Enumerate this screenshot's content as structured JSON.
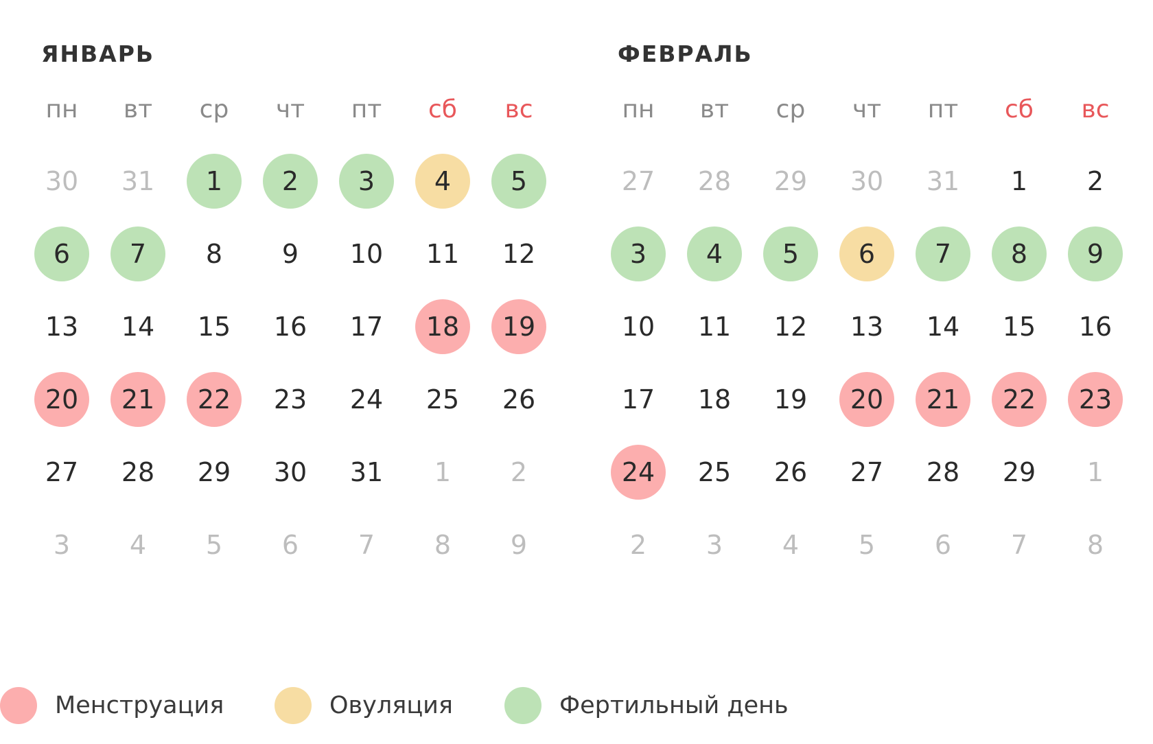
{
  "months": [
    {
      "title": "ЯНВАРЬ",
      "weekdays": [
        {
          "label": "пн",
          "weekend": false
        },
        {
          "label": "вт",
          "weekend": false
        },
        {
          "label": "ср",
          "weekend": false
        },
        {
          "label": "чт",
          "weekend": false
        },
        {
          "label": "пт",
          "weekend": false
        },
        {
          "label": "сб",
          "weekend": true
        },
        {
          "label": "вс",
          "weekend": true
        }
      ],
      "weeks": [
        [
          {
            "day": "30",
            "inMonth": false,
            "type": null
          },
          {
            "day": "31",
            "inMonth": false,
            "type": null
          },
          {
            "day": "1",
            "inMonth": true,
            "type": "fertile"
          },
          {
            "day": "2",
            "inMonth": true,
            "type": "fertile"
          },
          {
            "day": "3",
            "inMonth": true,
            "type": "fertile"
          },
          {
            "day": "4",
            "inMonth": true,
            "type": "ovulation"
          },
          {
            "day": "5",
            "inMonth": true,
            "type": "fertile"
          }
        ],
        [
          {
            "day": "6",
            "inMonth": true,
            "type": "fertile"
          },
          {
            "day": "7",
            "inMonth": true,
            "type": "fertile"
          },
          {
            "day": "8",
            "inMonth": true,
            "type": null
          },
          {
            "day": "9",
            "inMonth": true,
            "type": null
          },
          {
            "day": "10",
            "inMonth": true,
            "type": null
          },
          {
            "day": "11",
            "inMonth": true,
            "type": null
          },
          {
            "day": "12",
            "inMonth": true,
            "type": null
          }
        ],
        [
          {
            "day": "13",
            "inMonth": true,
            "type": null
          },
          {
            "day": "14",
            "inMonth": true,
            "type": null
          },
          {
            "day": "15",
            "inMonth": true,
            "type": null
          },
          {
            "day": "16",
            "inMonth": true,
            "type": null
          },
          {
            "day": "17",
            "inMonth": true,
            "type": null
          },
          {
            "day": "18",
            "inMonth": true,
            "type": "menstruation"
          },
          {
            "day": "19",
            "inMonth": true,
            "type": "menstruation"
          }
        ],
        [
          {
            "day": "20",
            "inMonth": true,
            "type": "menstruation"
          },
          {
            "day": "21",
            "inMonth": true,
            "type": "menstruation"
          },
          {
            "day": "22",
            "inMonth": true,
            "type": "menstruation"
          },
          {
            "day": "23",
            "inMonth": true,
            "type": null
          },
          {
            "day": "24",
            "inMonth": true,
            "type": null
          },
          {
            "day": "25",
            "inMonth": true,
            "type": null
          },
          {
            "day": "26",
            "inMonth": true,
            "type": null
          }
        ],
        [
          {
            "day": "27",
            "inMonth": true,
            "type": null
          },
          {
            "day": "28",
            "inMonth": true,
            "type": null
          },
          {
            "day": "29",
            "inMonth": true,
            "type": null
          },
          {
            "day": "30",
            "inMonth": true,
            "type": null
          },
          {
            "day": "31",
            "inMonth": true,
            "type": null
          },
          {
            "day": "1",
            "inMonth": false,
            "type": null
          },
          {
            "day": "2",
            "inMonth": false,
            "type": null
          }
        ],
        [
          {
            "day": "3",
            "inMonth": false,
            "type": null
          },
          {
            "day": "4",
            "inMonth": false,
            "type": null
          },
          {
            "day": "5",
            "inMonth": false,
            "type": null
          },
          {
            "day": "6",
            "inMonth": false,
            "type": null
          },
          {
            "day": "7",
            "inMonth": false,
            "type": null
          },
          {
            "day": "8",
            "inMonth": false,
            "type": null
          },
          {
            "day": "9",
            "inMonth": false,
            "type": null
          }
        ]
      ]
    },
    {
      "title": "ФЕВРАЛЬ",
      "weekdays": [
        {
          "label": "пн",
          "weekend": false
        },
        {
          "label": "вт",
          "weekend": false
        },
        {
          "label": "ср",
          "weekend": false
        },
        {
          "label": "чт",
          "weekend": false
        },
        {
          "label": "пт",
          "weekend": false
        },
        {
          "label": "сб",
          "weekend": true
        },
        {
          "label": "вс",
          "weekend": true
        }
      ],
      "weeks": [
        [
          {
            "day": "27",
            "inMonth": false,
            "type": null
          },
          {
            "day": "28",
            "inMonth": false,
            "type": null
          },
          {
            "day": "29",
            "inMonth": false,
            "type": null
          },
          {
            "day": "30",
            "inMonth": false,
            "type": null
          },
          {
            "day": "31",
            "inMonth": false,
            "type": null
          },
          {
            "day": "1",
            "inMonth": true,
            "type": null
          },
          {
            "day": "2",
            "inMonth": true,
            "type": null
          }
        ],
        [
          {
            "day": "3",
            "inMonth": true,
            "type": "fertile"
          },
          {
            "day": "4",
            "inMonth": true,
            "type": "fertile"
          },
          {
            "day": "5",
            "inMonth": true,
            "type": "fertile"
          },
          {
            "day": "6",
            "inMonth": true,
            "type": "ovulation"
          },
          {
            "day": "7",
            "inMonth": true,
            "type": "fertile"
          },
          {
            "day": "8",
            "inMonth": true,
            "type": "fertile"
          },
          {
            "day": "9",
            "inMonth": true,
            "type": "fertile"
          }
        ],
        [
          {
            "day": "10",
            "inMonth": true,
            "type": null
          },
          {
            "day": "11",
            "inMonth": true,
            "type": null
          },
          {
            "day": "12",
            "inMonth": true,
            "type": null
          },
          {
            "day": "13",
            "inMonth": true,
            "type": null
          },
          {
            "day": "14",
            "inMonth": true,
            "type": null
          },
          {
            "day": "15",
            "inMonth": true,
            "type": null
          },
          {
            "day": "16",
            "inMonth": true,
            "type": null
          }
        ],
        [
          {
            "day": "17",
            "inMonth": true,
            "type": null
          },
          {
            "day": "18",
            "inMonth": true,
            "type": null
          },
          {
            "day": "19",
            "inMonth": true,
            "type": null
          },
          {
            "day": "20",
            "inMonth": true,
            "type": "menstruation"
          },
          {
            "day": "21",
            "inMonth": true,
            "type": "menstruation"
          },
          {
            "day": "22",
            "inMonth": true,
            "type": "menstruation"
          },
          {
            "day": "23",
            "inMonth": true,
            "type": "menstruation"
          }
        ],
        [
          {
            "day": "24",
            "inMonth": true,
            "type": "menstruation"
          },
          {
            "day": "25",
            "inMonth": true,
            "type": null
          },
          {
            "day": "26",
            "inMonth": true,
            "type": null
          },
          {
            "day": "27",
            "inMonth": true,
            "type": null
          },
          {
            "day": "28",
            "inMonth": true,
            "type": null
          },
          {
            "day": "29",
            "inMonth": true,
            "type": null
          },
          {
            "day": "1",
            "inMonth": false,
            "type": null
          }
        ],
        [
          {
            "day": "2",
            "inMonth": false,
            "type": null
          },
          {
            "day": "3",
            "inMonth": false,
            "type": null
          },
          {
            "day": "4",
            "inMonth": false,
            "type": null
          },
          {
            "day": "5",
            "inMonth": false,
            "type": null
          },
          {
            "day": "6",
            "inMonth": false,
            "type": null
          },
          {
            "day": "7",
            "inMonth": false,
            "type": null
          },
          {
            "day": "8",
            "inMonth": false,
            "type": null
          }
        ]
      ]
    }
  ],
  "legend": [
    {
      "type": "menstruation",
      "label": "Менструация",
      "color": "#fcaeae"
    },
    {
      "type": "ovulation",
      "label": "Овуляция",
      "color": "#f7dda3"
    },
    {
      "type": "fertile",
      "label": "Фертильный день",
      "color": "#bde2b6"
    }
  ],
  "colors": {
    "menstruation": "#fcaeae",
    "ovulation": "#f7dda3",
    "fertile": "#bde2b6",
    "weekend_text": "#e8575a",
    "weekday_text": "#8a8a8a",
    "day_text": "#2a2a2a",
    "muted_text": "#bdbdbd"
  }
}
